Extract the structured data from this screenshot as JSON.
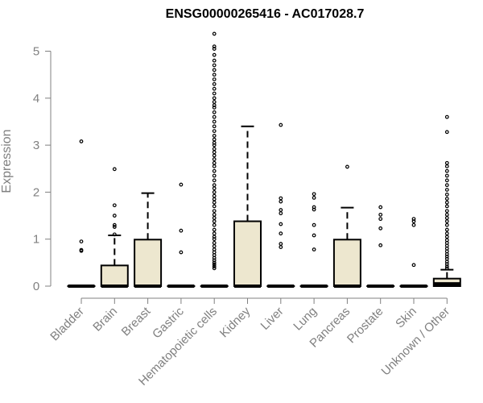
{
  "chart_data": {
    "type": "boxplot",
    "title": "ENSG00000265416 - AC017028.7",
    "xlabel": "",
    "ylabel": "Expression",
    "ylim": [
      0,
      5.5
    ],
    "yticks": [
      0,
      1,
      2,
      3,
      4,
      5
    ],
    "grid": false,
    "box_color": "#ede7cf",
    "categories": [
      "Bladder",
      "Brain",
      "Breast",
      "Gastric",
      "Hematopoietic cells",
      "Kidney",
      "Liver",
      "Lung",
      "Pancreas",
      "Prostate",
      "Skin",
      "Unknown / Other"
    ],
    "series": [
      {
        "q1": 0,
        "median": 0,
        "q3": 0,
        "whisker_low": 0,
        "whisker_high": 0,
        "outliers": [
          0.75,
          0.77,
          0.95,
          3.08
        ]
      },
      {
        "q1": 0,
        "median": 0,
        "q3": 0.44,
        "whisker_low": 0,
        "whisker_high": 1.08,
        "outliers": [
          1.1,
          1.26,
          1.3,
          1.5,
          1.72,
          2.49
        ]
      },
      {
        "q1": 0,
        "median": 0,
        "q3": 0.99,
        "whisker_low": 0,
        "whisker_high": 1.98,
        "outliers": []
      },
      {
        "q1": 0,
        "median": 0,
        "q3": 0,
        "whisker_low": 0,
        "whisker_high": 0,
        "outliers": [
          0.72,
          1.18,
          2.16
        ]
      },
      {
        "q1": 0,
        "median": 0,
        "q3": 0,
        "whisker_low": 0,
        "whisker_high": 0,
        "outliers": [
          0.38,
          0.42,
          0.46,
          0.5,
          0.55,
          0.6,
          0.66,
          0.72,
          0.78,
          0.85,
          0.92,
          1.0,
          1.05,
          1.12,
          1.2,
          1.3,
          1.38,
          1.45,
          1.52,
          1.6,
          1.7,
          1.78,
          1.85,
          1.92,
          2.0,
          2.08,
          2.15,
          2.25,
          2.35,
          2.45,
          2.55,
          2.62,
          2.7,
          2.78,
          2.85,
          2.92,
          3.0,
          3.05,
          3.12,
          3.2,
          3.3,
          3.4,
          3.5,
          3.6,
          3.7,
          3.8,
          3.85,
          3.92,
          4.0,
          4.1,
          4.2,
          4.3,
          4.4,
          4.5,
          4.6,
          4.7,
          4.8,
          4.92,
          5.05,
          5.1,
          5.37
        ]
      },
      {
        "q1": 0,
        "median": 0,
        "q3": 1.38,
        "whisker_low": 0,
        "whisker_high": 3.4,
        "outliers": []
      },
      {
        "q1": 0,
        "median": 0,
        "q3": 0,
        "whisker_low": 0,
        "whisker_high": 0,
        "outliers": [
          0.83,
          0.9,
          1.12,
          1.32,
          1.55,
          1.62,
          1.8,
          1.87,
          3.43
        ]
      },
      {
        "q1": 0,
        "median": 0,
        "q3": 0,
        "whisker_low": 0,
        "whisker_high": 0,
        "outliers": [
          0.78,
          1.08,
          1.3,
          1.63,
          1.68,
          1.88,
          1.96
        ]
      },
      {
        "q1": 0,
        "median": 0,
        "q3": 0.99,
        "whisker_low": 0,
        "whisker_high": 1.67,
        "outliers": [
          2.54
        ]
      },
      {
        "q1": 0,
        "median": 0,
        "q3": 0,
        "whisker_low": 0,
        "whisker_high": 0,
        "outliers": [
          0.87,
          1.23,
          1.43,
          1.52,
          1.68
        ]
      },
      {
        "q1": 0,
        "median": 0,
        "q3": 0,
        "whisker_low": 0,
        "whisker_high": 0,
        "outliers": [
          0.45,
          1.3,
          1.38,
          1.43
        ]
      },
      {
        "q1": 0,
        "median": 0.05,
        "q3": 0.16,
        "whisker_low": 0,
        "whisker_high": 0.35,
        "outliers": [
          0.38,
          0.42,
          0.47,
          0.52,
          0.58,
          0.63,
          0.68,
          0.74,
          0.8,
          0.86,
          0.92,
          0.98,
          1.05,
          1.12,
          1.2,
          1.3,
          1.38,
          1.45,
          1.52,
          1.6,
          1.7,
          1.78,
          1.86,
          1.95,
          2.05,
          2.15,
          2.25,
          2.35,
          2.45,
          2.55,
          2.62,
          3.28,
          3.6
        ]
      }
    ]
  }
}
